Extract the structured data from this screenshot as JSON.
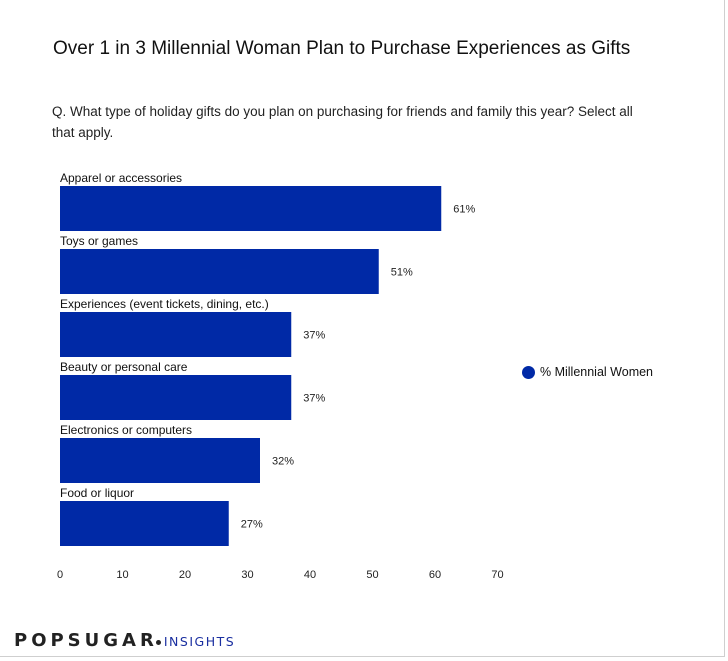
{
  "title": "Over 1 in 3 Millennial Woman Plan to Purchase Experiences as Gifts",
  "question": "Q. What type of holiday gifts do you plan on purchasing for friends and family this year? Select all that apply.",
  "brand": {
    "name": "POPSUGAR",
    "sub": "INSIGHTS"
  },
  "colors": {
    "bar": "#0029a6",
    "brand_sub": "#1a2fa0"
  },
  "chart_data": {
    "type": "bar",
    "orientation": "horizontal",
    "categories": [
      "Apparel or accessories",
      "Toys or games",
      "Experiences (event tickets, dining, etc.)",
      "Beauty or personal care",
      "Electronics or computers",
      "Food or liquor"
    ],
    "series": [
      {
        "name": "% Millennial Women",
        "values": [
          61,
          51,
          37,
          37,
          32,
          27
        ]
      }
    ],
    "data_labels": [
      "61%",
      "51%",
      "37%",
      "37%",
      "32%",
      "27%"
    ],
    "xlim": [
      0,
      70
    ],
    "xticks": [
      0,
      10,
      20,
      30,
      40,
      50,
      60,
      70
    ],
    "grid": false,
    "legend": "right"
  }
}
